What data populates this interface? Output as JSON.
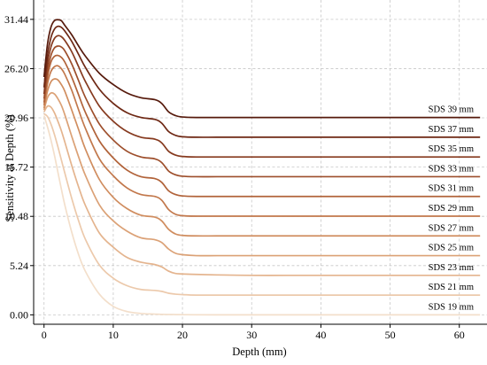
{
  "chart_data": {
    "type": "line",
    "title": "",
    "xlabel": "Depth (mm)",
    "ylabel": "Sensitivity at Depth (%)",
    "xlim": [
      -1.5,
      64
    ],
    "ylim": [
      -1.0,
      33.5
    ],
    "xticks": [
      0,
      10,
      20,
      30,
      40,
      50,
      60
    ],
    "yticks": [
      0.0,
      5.24,
      10.48,
      15.72,
      20.96,
      26.2,
      31.44
    ],
    "ytick_labels": [
      "0.00",
      "5.24",
      "10.48",
      "15.72",
      "20.96",
      "26.20",
      "31.44"
    ],
    "grid": true,
    "x": [
      0,
      0.5,
      1,
      1.5,
      2,
      2.5,
      3,
      4,
      5,
      6,
      8,
      10,
      12,
      14,
      16,
      17,
      18,
      19,
      20,
      22,
      25,
      30,
      35,
      40,
      45,
      50,
      55,
      60,
      63
    ],
    "series": [
      {
        "name": "SDS 19 mm",
        "color": "#f3dfcb",
        "values": [
          21.2,
          20.0,
          18.6,
          17.0,
          15.2,
          13.4,
          11.7,
          8.8,
          6.4,
          4.6,
          2.2,
          0.9,
          0.35,
          0.15,
          0.08,
          0.05,
          0.04,
          0.03,
          0.02,
          0.01,
          0.0,
          0.0,
          0.0,
          0.0,
          0.0,
          0.0,
          0.0,
          0.0,
          0.0
        ]
      },
      {
        "name": "SDS 21 mm",
        "color": "#ecc9ab",
        "values": [
          21.4,
          21.1,
          20.3,
          19.2,
          17.9,
          16.5,
          15.1,
          12.4,
          10.0,
          8.0,
          5.3,
          3.9,
          3.1,
          2.7,
          2.6,
          2.5,
          2.3,
          2.2,
          2.15,
          2.1,
          2.1,
          2.1,
          2.1,
          2.1,
          2.1,
          2.1,
          2.1,
          2.1,
          2.1
        ]
      },
      {
        "name": "SDS 23 mm",
        "color": "#e4b48e",
        "values": [
          21.6,
          22.2,
          22.1,
          21.5,
          20.6,
          19.6,
          18.4,
          15.9,
          13.6,
          11.6,
          8.7,
          7.2,
          6.1,
          5.6,
          5.35,
          5.1,
          4.65,
          4.4,
          4.35,
          4.3,
          4.25,
          4.2,
          4.2,
          4.2,
          4.2,
          4.2,
          4.2,
          4.2,
          4.2
        ]
      },
      {
        "name": "SDS 25 mm",
        "color": "#dba176",
        "values": [
          21.8,
          23.1,
          23.6,
          23.5,
          23.0,
          22.3,
          21.3,
          19.0,
          16.8,
          14.8,
          11.7,
          10.0,
          8.9,
          8.2,
          8.0,
          7.7,
          7.0,
          6.55,
          6.4,
          6.3,
          6.3,
          6.3,
          6.3,
          6.3,
          6.3,
          6.3,
          6.3,
          6.3,
          6.3
        ]
      },
      {
        "name": "SDS 27 mm",
        "color": "#d08d5f",
        "values": [
          22.0,
          23.8,
          24.8,
          25.1,
          25.0,
          24.5,
          23.8,
          21.8,
          19.7,
          17.6,
          14.4,
          12.5,
          11.3,
          10.6,
          10.4,
          10.0,
          9.1,
          8.6,
          8.45,
          8.4,
          8.4,
          8.4,
          8.4,
          8.4,
          8.4,
          8.4,
          8.4,
          8.4,
          8.4
        ]
      },
      {
        "name": "SDS 29 mm",
        "color": "#c2784c",
        "values": [
          22.3,
          24.6,
          25.9,
          26.4,
          26.5,
          26.2,
          25.6,
          23.9,
          21.8,
          19.8,
          16.6,
          14.8,
          13.5,
          12.8,
          12.6,
          12.2,
          11.2,
          10.7,
          10.55,
          10.5,
          10.5,
          10.5,
          10.5,
          10.5,
          10.5,
          10.5,
          10.5,
          10.5,
          10.5
        ]
      },
      {
        "name": "SDS 31 mm",
        "color": "#b1633a",
        "values": [
          22.6,
          25.3,
          26.9,
          27.5,
          27.6,
          27.4,
          26.9,
          25.3,
          23.4,
          21.5,
          18.5,
          16.7,
          15.4,
          14.7,
          14.5,
          14.1,
          13.2,
          12.8,
          12.65,
          12.6,
          12.6,
          12.6,
          12.6,
          12.6,
          12.6,
          12.6,
          12.6,
          12.6,
          12.6
        ]
      },
      {
        "name": "SDS 33 mm",
        "color": "#9d4e2b",
        "values": [
          23.0,
          25.9,
          27.6,
          28.4,
          28.6,
          28.5,
          28.1,
          26.7,
          24.9,
          23.1,
          20.3,
          18.6,
          17.4,
          16.8,
          16.6,
          16.2,
          15.3,
          14.9,
          14.75,
          14.7,
          14.7,
          14.7,
          14.7,
          14.7,
          14.7,
          14.7,
          14.7,
          14.7,
          14.7
        ]
      },
      {
        "name": "SDS 35 mm",
        "color": "#863a1f",
        "values": [
          23.5,
          26.7,
          28.5,
          29.4,
          29.7,
          29.6,
          29.2,
          28.0,
          26.4,
          24.8,
          22.2,
          20.6,
          19.5,
          18.9,
          18.7,
          18.3,
          17.4,
          17.0,
          16.85,
          16.8,
          16.8,
          16.8,
          16.8,
          16.8,
          16.8,
          16.8,
          16.8,
          16.8,
          16.8
        ]
      },
      {
        "name": "SDS 37 mm",
        "color": "#6e2814",
        "values": [
          24.2,
          27.6,
          29.5,
          30.4,
          30.7,
          30.6,
          30.2,
          29.1,
          27.7,
          26.3,
          24.0,
          22.5,
          21.5,
          21.0,
          20.8,
          20.4,
          19.5,
          19.1,
          18.95,
          18.9,
          18.9,
          18.9,
          18.9,
          18.9,
          18.9,
          18.9,
          18.9,
          18.9,
          18.9
        ]
      },
      {
        "name": "SDS 39 mm",
        "color": "#561a0c",
        "values": [
          25.3,
          28.8,
          30.6,
          31.3,
          31.4,
          31.3,
          30.8,
          29.8,
          28.6,
          27.5,
          25.7,
          24.5,
          23.6,
          23.1,
          22.9,
          22.5,
          21.6,
          21.2,
          21.05,
          21.0,
          21.0,
          21.0,
          21.0,
          21.0,
          21.0,
          21.0,
          21.0,
          21.0,
          21.0
        ]
      }
    ]
  }
}
